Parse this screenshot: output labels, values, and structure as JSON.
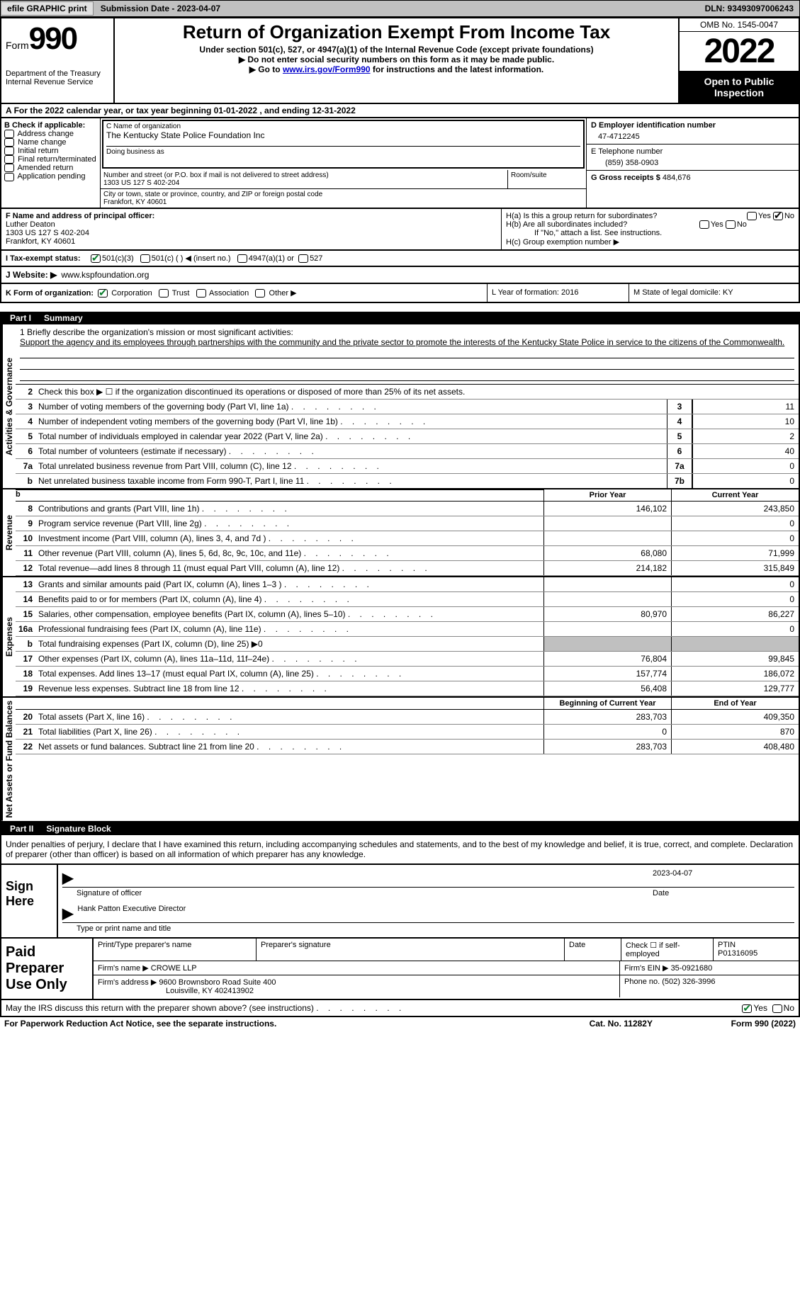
{
  "topbar": {
    "efile_btn": "efile GRAPHIC print",
    "sub_date_label": "Submission Date - 2023-04-07",
    "dln": "DLN: 93493097006243"
  },
  "header": {
    "form_word": "Form",
    "form_num": "990",
    "dept": "Department of the Treasury",
    "irs": "Internal Revenue Service",
    "title": "Return of Organization Exempt From Income Tax",
    "subtitle": "Under section 501(c), 527, or 4947(a)(1) of the Internal Revenue Code (except private foundations)",
    "note1": "▶ Do not enter social security numbers on this form as it may be made public.",
    "note2_pre": "▶ Go to ",
    "note2_link": "www.irs.gov/Form990",
    "note2_post": " for instructions and the latest information.",
    "omb": "OMB No. 1545-0047",
    "year": "2022",
    "open": "Open to Public Inspection"
  },
  "line_a": "For the 2022 calendar year, or tax year beginning 01-01-2022   , and ending 12-31-2022",
  "box_b": {
    "label": "B Check if applicable:",
    "opts": [
      "Address change",
      "Name change",
      "Initial return",
      "Final return/terminated",
      "Amended return",
      "Application pending"
    ]
  },
  "box_c": {
    "name_lbl": "C Name of organization",
    "name": "The Kentucky State Police Foundation Inc",
    "dba_lbl": "Doing business as",
    "street_lbl": "Number and street (or P.O. box if mail is not delivered to street address)",
    "street": "1303 US 127 S 402-204",
    "room_lbl": "Room/suite",
    "city_lbl": "City or town, state or province, country, and ZIP or foreign postal code",
    "city": "Frankfort, KY  40601"
  },
  "box_d": {
    "lbl": "D Employer identification number",
    "val": "47-4712245"
  },
  "box_e": {
    "lbl": "E Telephone number",
    "val": "(859) 358-0903"
  },
  "box_g": {
    "lbl": "G Gross receipts $",
    "val": "484,676"
  },
  "box_f": {
    "lbl": "F  Name and address of principal officer:",
    "name": "Luther Deaton",
    "addr1": "1303 US 127 S 402-204",
    "addr2": "Frankfort, KY  40601"
  },
  "box_h": {
    "ha": "H(a)  Is this a group return for subordinates?",
    "hb": "H(b)  Are all subordinates included?",
    "hb_note": "If \"No,\" attach a list. See instructions.",
    "hc": "H(c)  Group exemption number ▶"
  },
  "yes": "Yes",
  "no": "No",
  "line_i": {
    "lbl": "I    Tax-exempt status:",
    "o1": "501(c)(3)",
    "o2": "501(c) (  ) ◀ (insert no.)",
    "o3": "4947(a)(1) or",
    "o4": "527"
  },
  "line_j": {
    "lbl": "J   Website: ▶",
    "val": "www.kspfoundation.org"
  },
  "line_k": {
    "lbl": "K Form of organization:",
    "opts": [
      "Corporation",
      "Trust",
      "Association",
      "Other ▶"
    ],
    "l_lbl": "L Year of formation: 2016",
    "m_lbl": "M State of legal domicile: KY"
  },
  "part1": {
    "lbl": "Part I",
    "title": "Summary"
  },
  "mission": {
    "lbl": "1   Briefly describe the organization's mission or most significant activities:",
    "text": "Support the agency and its employees through partnerships with the community and the private sector to promote the interests of the Kentucky State Police in service to the citizens of the Commonwealth."
  },
  "side": {
    "act": "Activities & Governance",
    "rev": "Revenue",
    "exp": "Expenses",
    "net": "Net Assets or Fund Balances"
  },
  "gov": {
    "l2": "Check this box ▶ ☐ if the organization discontinued its operations or disposed of more than 25% of its net assets.",
    "rows": [
      {
        "n": "3",
        "d": "Number of voting members of the governing body (Part VI, line 1a)",
        "box": "3",
        "v": "11"
      },
      {
        "n": "4",
        "d": "Number of independent voting members of the governing body (Part VI, line 1b)",
        "box": "4",
        "v": "10"
      },
      {
        "n": "5",
        "d": "Total number of individuals employed in calendar year 2022 (Part V, line 2a)",
        "box": "5",
        "v": "2"
      },
      {
        "n": "6",
        "d": "Total number of volunteers (estimate if necessary)",
        "box": "6",
        "v": "40"
      },
      {
        "n": "7a",
        "d": "Total unrelated business revenue from Part VIII, column (C), line 12",
        "box": "7a",
        "v": "0"
      },
      {
        "n": "b",
        "d": "Net unrelated business taxable income from Form 990-T, Part I, line 11",
        "box": "7b",
        "v": "0"
      }
    ]
  },
  "cols": {
    "prior": "Prior Year",
    "current": "Current Year",
    "begin": "Beginning of Current Year",
    "end": "End of Year"
  },
  "revenue": [
    {
      "n": "8",
      "d": "Contributions and grants (Part VIII, line 1h)",
      "p": "146,102",
      "c": "243,850"
    },
    {
      "n": "9",
      "d": "Program service revenue (Part VIII, line 2g)",
      "p": "",
      "c": "0"
    },
    {
      "n": "10",
      "d": "Investment income (Part VIII, column (A), lines 3, 4, and 7d )",
      "p": "",
      "c": "0"
    },
    {
      "n": "11",
      "d": "Other revenue (Part VIII, column (A), lines 5, 6d, 8c, 9c, 10c, and 11e)",
      "p": "68,080",
      "c": "71,999"
    },
    {
      "n": "12",
      "d": "Total revenue—add lines 8 through 11 (must equal Part VIII, column (A), line 12)",
      "p": "214,182",
      "c": "315,849"
    }
  ],
  "expenses": [
    {
      "n": "13",
      "d": "Grants and similar amounts paid (Part IX, column (A), lines 1–3 )",
      "p": "",
      "c": "0"
    },
    {
      "n": "14",
      "d": "Benefits paid to or for members (Part IX, column (A), line 4)",
      "p": "",
      "c": "0"
    },
    {
      "n": "15",
      "d": "Salaries, other compensation, employee benefits (Part IX, column (A), lines 5–10)",
      "p": "80,970",
      "c": "86,227"
    },
    {
      "n": "16a",
      "d": "Professional fundraising fees (Part IX, column (A), line 11e)",
      "p": "",
      "c": "0"
    },
    {
      "n": "b",
      "d": "Total fundraising expenses (Part IX, column (D), line 25) ▶0",
      "shaded": true
    },
    {
      "n": "17",
      "d": "Other expenses (Part IX, column (A), lines 11a–11d, 11f–24e)",
      "p": "76,804",
      "c": "99,845"
    },
    {
      "n": "18",
      "d": "Total expenses. Add lines 13–17 (must equal Part IX, column (A), line 25)",
      "p": "157,774",
      "c": "186,072"
    },
    {
      "n": "19",
      "d": "Revenue less expenses. Subtract line 18 from line 12",
      "p": "56,408",
      "c": "129,777"
    }
  ],
  "net": [
    {
      "n": "20",
      "d": "Total assets (Part X, line 16)",
      "p": "283,703",
      "c": "409,350"
    },
    {
      "n": "21",
      "d": "Total liabilities (Part X, line 26)",
      "p": "0",
      "c": "870"
    },
    {
      "n": "22",
      "d": "Net assets or fund balances. Subtract line 21 from line 20",
      "p": "283,703",
      "c": "408,480"
    }
  ],
  "part2": {
    "lbl": "Part II",
    "title": "Signature Block"
  },
  "sig_declare": "Under penalties of perjury, I declare that I have examined this return, including accompanying schedules and statements, and to the best of my knowledge and belief, it is true, correct, and complete. Declaration of preparer (other than officer) is based on all information of which preparer has any knowledge.",
  "sign": {
    "here": "Sign Here",
    "sig_lbl": "Signature of officer",
    "date_lbl": "Date",
    "date": "2023-04-07",
    "name": "Hank Patton  Executive Director",
    "name_lbl": "Type or print name and title"
  },
  "paid": {
    "lbl": "Paid Preparer Use Only",
    "p_name_lbl": "Print/Type preparer's name",
    "p_sig_lbl": "Preparer's signature",
    "p_date_lbl": "Date",
    "check_lbl": "Check ☐ if self-employed",
    "ptin_lbl": "PTIN",
    "ptin": "P01316095",
    "firm_name_lbl": "Firm's name    ▶",
    "firm_name": "CROWE LLP",
    "firm_ein_lbl": "Firm's EIN ▶",
    "firm_ein": "35-0921680",
    "firm_addr_lbl": "Firm's address ▶",
    "firm_addr1": "9600 Brownsboro Road Suite 400",
    "firm_addr2": "Louisville, KY  402413902",
    "phone_lbl": "Phone no.",
    "phone": "(502) 326-3996"
  },
  "discuss": "May the IRS discuss this return with the preparer shown above? (see instructions)",
  "footer": {
    "pra": "For Paperwork Reduction Act Notice, see the separate instructions.",
    "cat": "Cat. No. 11282Y",
    "form": "Form 990 (2022)"
  }
}
